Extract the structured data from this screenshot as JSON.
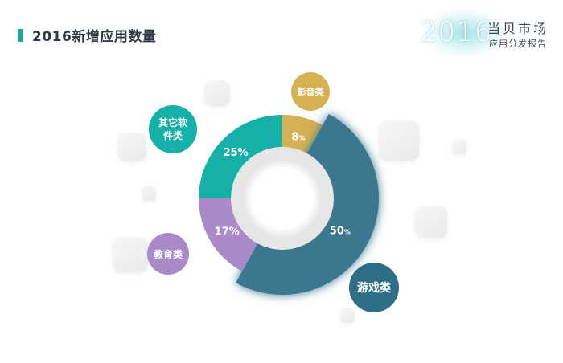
{
  "header": {
    "title": "2016新增应用数量"
  },
  "brand": {
    "year": "2016",
    "name": "当贝市场",
    "subtitle": "应用分发报告"
  },
  "chart_data": {
    "type": "pie",
    "title": "2016新增应用数量",
    "series": [
      {
        "name": "游戏类",
        "value": 50,
        "label_num": "50",
        "label_pct": "%",
        "color": "#3a778f"
      },
      {
        "name": "教育类",
        "value": 17,
        "label_num": "17",
        "label_pct": "%",
        "color": "#a98ac9"
      },
      {
        "name": "其它软件类",
        "value": 25,
        "label_num": "25",
        "label_pct": "%",
        "color": "#15b1a9"
      },
      {
        "name": "影音类",
        "value": 8,
        "label_num": "8",
        "label_pct": "%",
        "color": "#d6b153"
      }
    ],
    "legend": "bubble labels around the donut"
  },
  "labels": {
    "games": "游戏类",
    "education": "教育类",
    "other_line1": "其它软",
    "other_line2": "件类",
    "media": "影音类"
  }
}
